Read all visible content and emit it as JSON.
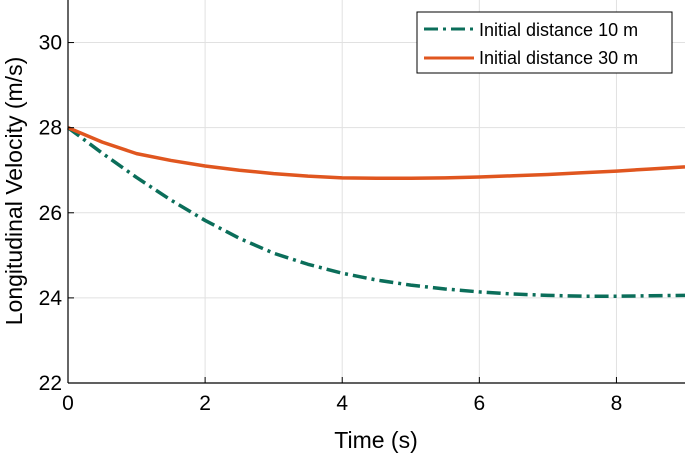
{
  "chart_data": {
    "type": "line",
    "xlabel": "Time (s)",
    "ylabel": "Longitudinal Velocity (m/s)",
    "xlim": [
      0,
      9
    ],
    "ylim": [
      22,
      31
    ],
    "x_ticks": [
      0,
      2,
      4,
      6,
      8
    ],
    "y_ticks": [
      22,
      24,
      26,
      28,
      30
    ],
    "x_tick_labels": [
      "0",
      "2",
      "4",
      "6",
      "8"
    ],
    "y_tick_labels": [
      "22",
      "24",
      "26",
      "28",
      "30"
    ],
    "grid": true,
    "legend_position": "top-right",
    "series": [
      {
        "name": "Initial distance 10 m",
        "color": "#0b6e5a",
        "line_style": "dash-dot",
        "x": [
          0,
          0.5,
          1,
          1.5,
          2,
          2.5,
          3,
          3.5,
          4,
          4.5,
          5,
          5.5,
          6,
          6.5,
          7,
          7.5,
          8,
          8.5,
          9
        ],
        "y": [
          28.0,
          27.4,
          26.83,
          26.3,
          25.82,
          25.4,
          25.05,
          24.79,
          24.58,
          24.42,
          24.3,
          24.21,
          24.14,
          24.09,
          24.06,
          24.04,
          24.04,
          24.05,
          24.06
        ]
      },
      {
        "name": "Initial distance 30 m",
        "color": "#e0561f",
        "line_style": "solid",
        "x": [
          0,
          0.5,
          1,
          1.5,
          2,
          2.5,
          3,
          3.5,
          4,
          4.5,
          5,
          5.5,
          6,
          6.5,
          7,
          7.5,
          8,
          8.5,
          9
        ],
        "y": [
          28.0,
          27.66,
          27.39,
          27.23,
          27.1,
          27.0,
          26.92,
          26.86,
          26.82,
          26.81,
          26.81,
          26.82,
          26.84,
          26.87,
          26.9,
          26.94,
          26.98,
          27.03,
          27.08
        ]
      }
    ]
  }
}
